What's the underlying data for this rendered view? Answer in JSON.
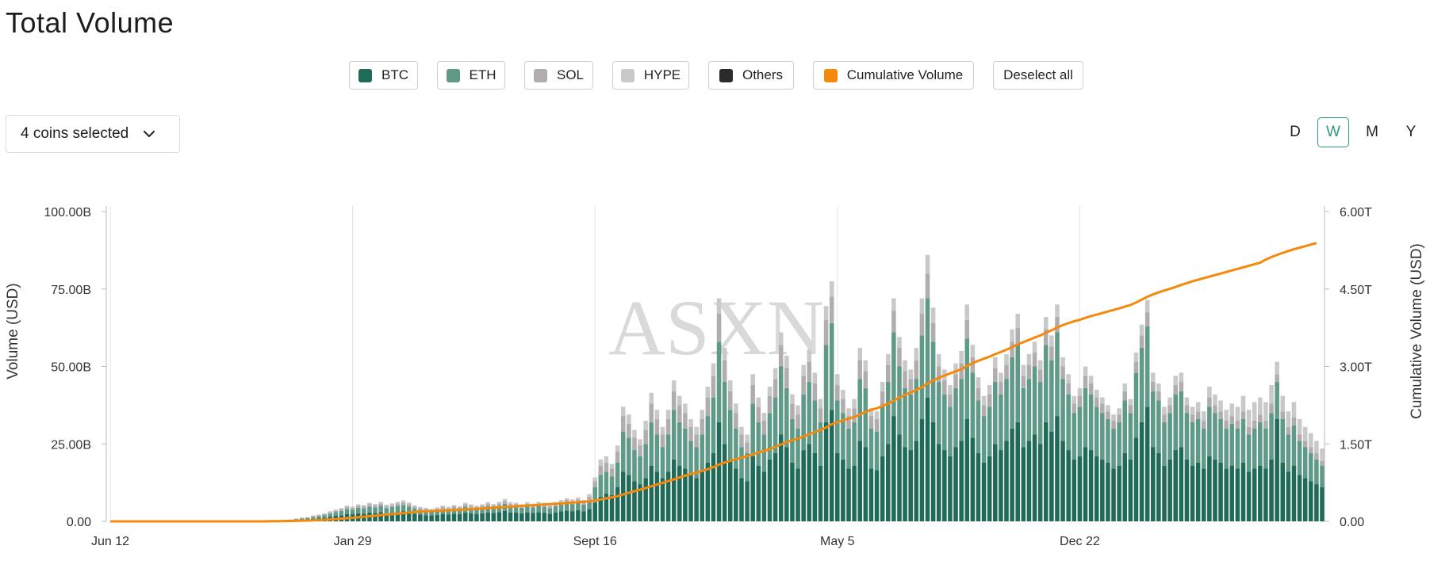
{
  "title": "Total Volume",
  "legend": [
    {
      "key": "btc",
      "label": "BTC",
      "color": "#1f6a58"
    },
    {
      "key": "eth",
      "label": "ETH",
      "color": "#5e9a87"
    },
    {
      "key": "sol",
      "label": "SOL",
      "color": "#b1adad"
    },
    {
      "key": "hype",
      "label": "HYPE",
      "color": "#c9c9c9"
    },
    {
      "key": "others",
      "label": "Others",
      "color": "#2b2b2b"
    },
    {
      "key": "cum",
      "label": "Cumulative Volume",
      "color": "#f5890c"
    }
  ],
  "deselect_label": "Deselect all",
  "coins_selector": {
    "label": "4 coins selected",
    "icon": "chevron-down-icon"
  },
  "intervals": {
    "d": "D",
    "w": "W",
    "m": "M",
    "y": "Y",
    "active": "W"
  },
  "watermark": "ASXN",
  "chart_data": {
    "type": "bar",
    "x_tick_labels": [
      "Jun 12",
      "Jan 29",
      "Sept 16",
      "May 5",
      "Dec 22"
    ],
    "ylabel": "Volume (USD)",
    "y2label": "Cumulative Volume (USD)",
    "y_tick_labels": [
      "0.00",
      "25.00B",
      "50.00B",
      "75.00B",
      "100.00B"
    ],
    "y2_tick_labels": [
      "0.00",
      "1.50T",
      "3.00T",
      "4.50T",
      "6.00T"
    ],
    "ylim": [
      0,
      100
    ],
    "y2lim": [
      0,
      6
    ],
    "y_unit": "B",
    "y2_unit": "T",
    "grid": "vertical",
    "series": [
      {
        "name": "BTC",
        "color": "#1f6a58",
        "values": [
          0,
          0,
          0,
          0,
          0,
          0,
          0,
          0,
          0,
          0,
          0,
          0,
          0,
          0,
          0,
          0,
          0,
          0,
          0,
          0,
          0,
          0,
          0,
          0,
          0,
          0,
          0,
          0,
          0,
          0,
          0.1,
          0.2,
          0.3,
          0.4,
          0.5,
          0.6,
          0.8,
          1,
          1.2,
          1.5,
          1.8,
          2,
          2.4,
          2.3,
          2.6,
          2.5,
          2.8,
          2.7,
          3,
          2.6,
          2.8,
          3,
          3.2,
          2.9,
          2.5,
          2.2,
          2,
          1.9,
          2.1,
          2.4,
          2.2,
          2.5,
          2.3,
          2.8,
          2.6,
          2.4,
          2.6,
          2.9,
          2.7,
          3,
          3.4,
          2.9,
          2.8,
          2.6,
          2.9,
          2.7,
          3,
          2.8,
          2.5,
          2.9,
          3.2,
          3.5,
          3.3,
          3.6,
          3.2,
          4,
          6,
          8,
          9,
          8.5,
          11,
          16,
          15,
          13,
          12,
          14,
          18,
          16,
          14,
          16,
          20,
          18,
          17,
          15,
          14,
          16,
          19,
          22,
          32,
          25,
          20,
          17,
          14,
          13,
          21,
          18,
          16,
          20,
          22,
          28,
          24,
          19,
          17,
          23,
          25,
          22,
          18,
          32,
          36,
          22,
          20,
          17,
          18,
          26,
          24,
          17,
          16.5,
          21,
          25,
          34,
          28,
          24,
          23,
          26,
          33,
          40,
          32,
          25,
          23,
          21,
          24,
          26,
          33,
          27,
          22,
          19,
          21,
          25,
          23,
          26,
          30,
          32,
          24,
          26,
          28,
          25,
          32,
          29,
          34,
          26,
          23,
          20,
          21,
          24,
          23,
          21,
          20,
          19,
          17,
          18,
          22,
          20,
          27,
          32,
          37,
          24,
          22,
          18,
          20,
          23,
          24,
          20,
          18,
          19,
          17,
          21,
          20,
          19,
          17,
          18,
          17,
          19,
          16,
          17,
          18,
          17,
          20,
          33,
          19,
          16,
          18,
          15,
          14,
          13,
          12,
          11
        ]
      },
      {
        "name": "ETH",
        "color": "#5e9a87",
        "values": [
          0,
          0,
          0,
          0,
          0,
          0,
          0,
          0,
          0,
          0,
          0,
          0,
          0,
          0,
          0,
          0,
          0,
          0,
          0,
          0,
          0,
          0,
          0,
          0,
          0,
          0,
          0,
          0,
          0,
          0,
          0.1,
          0.2,
          0.2,
          0.3,
          0.4,
          0.5,
          0.6,
          0.7,
          0.8,
          1,
          1.2,
          1.4,
          1.6,
          1.5,
          1.8,
          1.7,
          1.9,
          1.8,
          2,
          1.7,
          1.8,
          2,
          2.1,
          1.9,
          1.6,
          1.5,
          1.4,
          1.3,
          1.4,
          1.6,
          1.5,
          1.7,
          1.6,
          1.9,
          1.8,
          1.6,
          1.8,
          2,
          1.8,
          2,
          2.3,
          2,
          1.9,
          1.8,
          2,
          1.8,
          2,
          1.9,
          1.7,
          2,
          2.2,
          2.4,
          2.3,
          2.5,
          2.2,
          2.8,
          5,
          7,
          7,
          6,
          8,
          13,
          12,
          10,
          9,
          11,
          14,
          12,
          10,
          12,
          16,
          14,
          13,
          11,
          10,
          12,
          15,
          18,
          26,
          20,
          16,
          13,
          10,
          9,
          17,
          14,
          12,
          15,
          18,
          22,
          19,
          14,
          13,
          18,
          20,
          17,
          14,
          25,
          28,
          17,
          15,
          13,
          14,
          20,
          19,
          13,
          12.5,
          16,
          20,
          27,
          22,
          19,
          18,
          20,
          27,
          32,
          26,
          20,
          18,
          16,
          19,
          20,
          26,
          21,
          17,
          15,
          16,
          20,
          18,
          20,
          23,
          25,
          19,
          20,
          22,
          20,
          25,
          23,
          27,
          20,
          18,
          15,
          16,
          19,
          18,
          16,
          15,
          14,
          13,
          14,
          17,
          15,
          21,
          24,
          26,
          18,
          17,
          14,
          15,
          18,
          18,
          15,
          14,
          14,
          13,
          16,
          15,
          14,
          13,
          13.5,
          13,
          14,
          12,
          13,
          14,
          13,
          15,
          12,
          14,
          12,
          13,
          11,
          10,
          9,
          8,
          7
        ]
      },
      {
        "name": "SOL",
        "color": "#b1adad",
        "values": [
          0,
          0,
          0,
          0,
          0,
          0,
          0,
          0,
          0,
          0,
          0,
          0,
          0,
          0,
          0,
          0,
          0,
          0,
          0,
          0,
          0,
          0,
          0,
          0,
          0,
          0,
          0,
          0,
          0,
          0,
          0.05,
          0.1,
          0.1,
          0.15,
          0.2,
          0.2,
          0.3,
          0.3,
          0.4,
          0.5,
          0.5,
          0.6,
          0.7,
          0.6,
          0.7,
          0.7,
          0.8,
          0.7,
          0.8,
          0.7,
          0.7,
          0.8,
          0.9,
          0.8,
          0.7,
          0.6,
          0.6,
          0.5,
          0.6,
          0.7,
          0.6,
          0.7,
          0.6,
          0.8,
          0.7,
          0.7,
          0.7,
          0.8,
          0.7,
          0.8,
          0.9,
          0.8,
          0.8,
          0.7,
          0.8,
          0.7,
          0.8,
          0.8,
          0.7,
          0.8,
          0.9,
          1,
          0.9,
          1,
          0.9,
          1.2,
          2,
          3,
          3,
          2.5,
          3.5,
          5,
          4.5,
          4,
          3.5,
          4.5,
          6,
          5,
          4,
          5,
          6,
          5.5,
          5,
          4.5,
          4,
          5,
          6,
          7,
          9,
          7,
          6,
          5,
          4,
          3.5,
          6,
          5,
          4.5,
          5.5,
          6,
          7,
          6.5,
          5,
          4.5,
          6,
          6.5,
          5.5,
          4.5,
          8,
          8.5,
          5,
          4.5,
          4,
          4.5,
          6,
          5.5,
          4,
          4,
          5,
          5.5,
          7,
          6,
          5.5,
          5,
          6,
          7,
          8,
          6,
          5,
          4.5,
          4,
          4.5,
          5,
          6,
          5,
          4,
          3.5,
          4,
          4.5,
          4,
          4.5,
          5,
          5.5,
          4,
          4.5,
          4.5,
          4,
          5,
          4.5,
          5,
          4,
          3.5,
          3,
          3.5,
          4,
          3.5,
          3,
          3,
          2.5,
          2.5,
          2.5,
          3,
          2.5,
          3.5,
          4,
          4.5,
          3,
          3,
          2.5,
          2.5,
          3,
          3,
          2.5,
          2.5,
          2.5,
          2.5,
          3,
          2.5,
          2.5,
          2.5,
          2.5,
          2.5,
          2.5,
          2.5,
          2.5,
          2.5,
          2.5,
          3,
          2.5,
          2.5,
          2.5,
          2.5,
          2,
          2,
          2,
          2,
          1.5
        ]
      },
      {
        "name": "HYPE",
        "color": "#c9c9c9",
        "values": [
          0,
          0,
          0,
          0,
          0,
          0,
          0,
          0,
          0,
          0,
          0,
          0,
          0,
          0,
          0,
          0,
          0,
          0,
          0,
          0,
          0,
          0,
          0,
          0,
          0,
          0,
          0,
          0,
          0,
          0,
          0,
          0.05,
          0.05,
          0.1,
          0.1,
          0.1,
          0.2,
          0.2,
          0.2,
          0.3,
          0.3,
          0.3,
          0.4,
          0.4,
          0.4,
          0.4,
          0.5,
          0.4,
          0.5,
          0.4,
          0.5,
          0.5,
          0.6,
          0.5,
          0.4,
          0.4,
          0.4,
          0.3,
          0.4,
          0.4,
          0.4,
          0.4,
          0.4,
          0.5,
          0.4,
          0.4,
          0.4,
          0.5,
          0.4,
          0.5,
          0.6,
          0.5,
          0.5,
          0.4,
          0.5,
          0.5,
          0.5,
          0.5,
          0.4,
          0.5,
          0.6,
          0.6,
          0.6,
          0.6,
          0.6,
          0.8,
          1.2,
          2,
          2,
          1.5,
          2,
          3,
          3,
          2.5,
          2,
          3,
          3.5,
          3,
          2.5,
          3,
          3.5,
          3,
          3,
          2.5,
          2.5,
          3,
          3.5,
          4,
          5,
          4,
          3.5,
          3,
          2.5,
          2.5,
          3.5,
          3,
          2.5,
          3,
          3.5,
          4,
          4,
          3,
          3,
          3.5,
          4,
          3.5,
          3,
          4.5,
          5,
          3.5,
          3,
          2.5,
          3,
          4,
          3.5,
          2.5,
          2.5,
          3,
          3.5,
          4,
          3.5,
          3.5,
          3,
          4,
          5,
          6,
          5,
          4,
          3.5,
          3,
          3.5,
          4,
          5,
          4,
          3.5,
          3,
          3,
          3.5,
          3,
          3.5,
          4,
          4.5,
          3.5,
          3.5,
          3.5,
          3,
          4,
          3.5,
          4,
          3,
          3,
          2.5,
          2.5,
          3,
          2.5,
          2.5,
          2,
          2,
          2,
          2,
          2.5,
          2,
          3,
          3.5,
          4,
          3,
          2.5,
          2.5,
          2.5,
          3,
          3,
          2.5,
          2.5,
          3,
          3,
          3.5,
          3.5,
          3.5,
          3.5,
          4,
          4.5,
          5,
          5.5,
          6,
          5.5,
          6,
          6,
          4,
          5,
          5,
          5,
          5,
          4.5,
          4.5,
          4,
          4,
          3.5
        ]
      }
    ],
    "cumulative": [
      0,
      0,
      0,
      0,
      0,
      0,
      0,
      0,
      0,
      0,
      0,
      0,
      0,
      0,
      0,
      0,
      0,
      0,
      0,
      0,
      0,
      0,
      0,
      0,
      0,
      0,
      0,
      0,
      0.001,
      0.003,
      0.004,
      0.006,
      0.008,
      0.01,
      0.013,
      0.016,
      0.02,
      0.025,
      0.031,
      0.037,
      0.044,
      0.052,
      0.061,
      0.07,
      0.08,
      0.09,
      0.1,
      0.11,
      0.12,
      0.13,
      0.14,
      0.15,
      0.16,
      0.17,
      0.18,
      0.19,
      0.195,
      0.2,
      0.205,
      0.21,
      0.215,
      0.22,
      0.226,
      0.232,
      0.238,
      0.244,
      0.25,
      0.257,
      0.264,
      0.271,
      0.278,
      0.285,
      0.292,
      0.299,
      0.306,
      0.313,
      0.32,
      0.327,
      0.334,
      0.341,
      0.348,
      0.356,
      0.364,
      0.372,
      0.38,
      0.39,
      0.405,
      0.425,
      0.445,
      0.465,
      0.49,
      0.52,
      0.555,
      0.585,
      0.615,
      0.645,
      0.68,
      0.715,
      0.745,
      0.78,
      0.815,
      0.85,
      0.885,
      0.915,
      0.945,
      0.975,
      1.01,
      1.05,
      1.1,
      1.14,
      1.175,
      1.205,
      1.235,
      1.26,
      1.3,
      1.335,
      1.365,
      1.4,
      1.44,
      1.49,
      1.535,
      1.57,
      1.6,
      1.645,
      1.69,
      1.73,
      1.765,
      1.82,
      1.88,
      1.92,
      1.955,
      1.99,
      2.02,
      2.07,
      2.12,
      2.16,
      2.19,
      2.235,
      2.28,
      2.34,
      2.4,
      2.45,
      2.495,
      2.545,
      2.6,
      2.67,
      2.73,
      2.78,
      2.825,
      2.865,
      2.905,
      2.95,
      3.01,
      3.065,
      3.11,
      3.15,
      3.19,
      3.24,
      3.28,
      3.325,
      3.375,
      3.43,
      3.47,
      3.515,
      3.56,
      3.6,
      3.655,
      3.7,
      3.755,
      3.8,
      3.84,
      3.875,
      3.905,
      3.94,
      3.975,
      4.005,
      4.035,
      4.065,
      4.095,
      4.125,
      4.16,
      4.19,
      4.24,
      4.295,
      4.35,
      4.395,
      4.435,
      4.47,
      4.505,
      4.54,
      4.58,
      4.615,
      4.65,
      4.68,
      4.71,
      4.74,
      4.77,
      4.8,
      4.83,
      4.86,
      4.89,
      4.92,
      4.95,
      4.98,
      5.01,
      5.07,
      5.12,
      5.16,
      5.2,
      5.235,
      5.27,
      5.3,
      5.33,
      5.36,
      5.39
    ]
  }
}
